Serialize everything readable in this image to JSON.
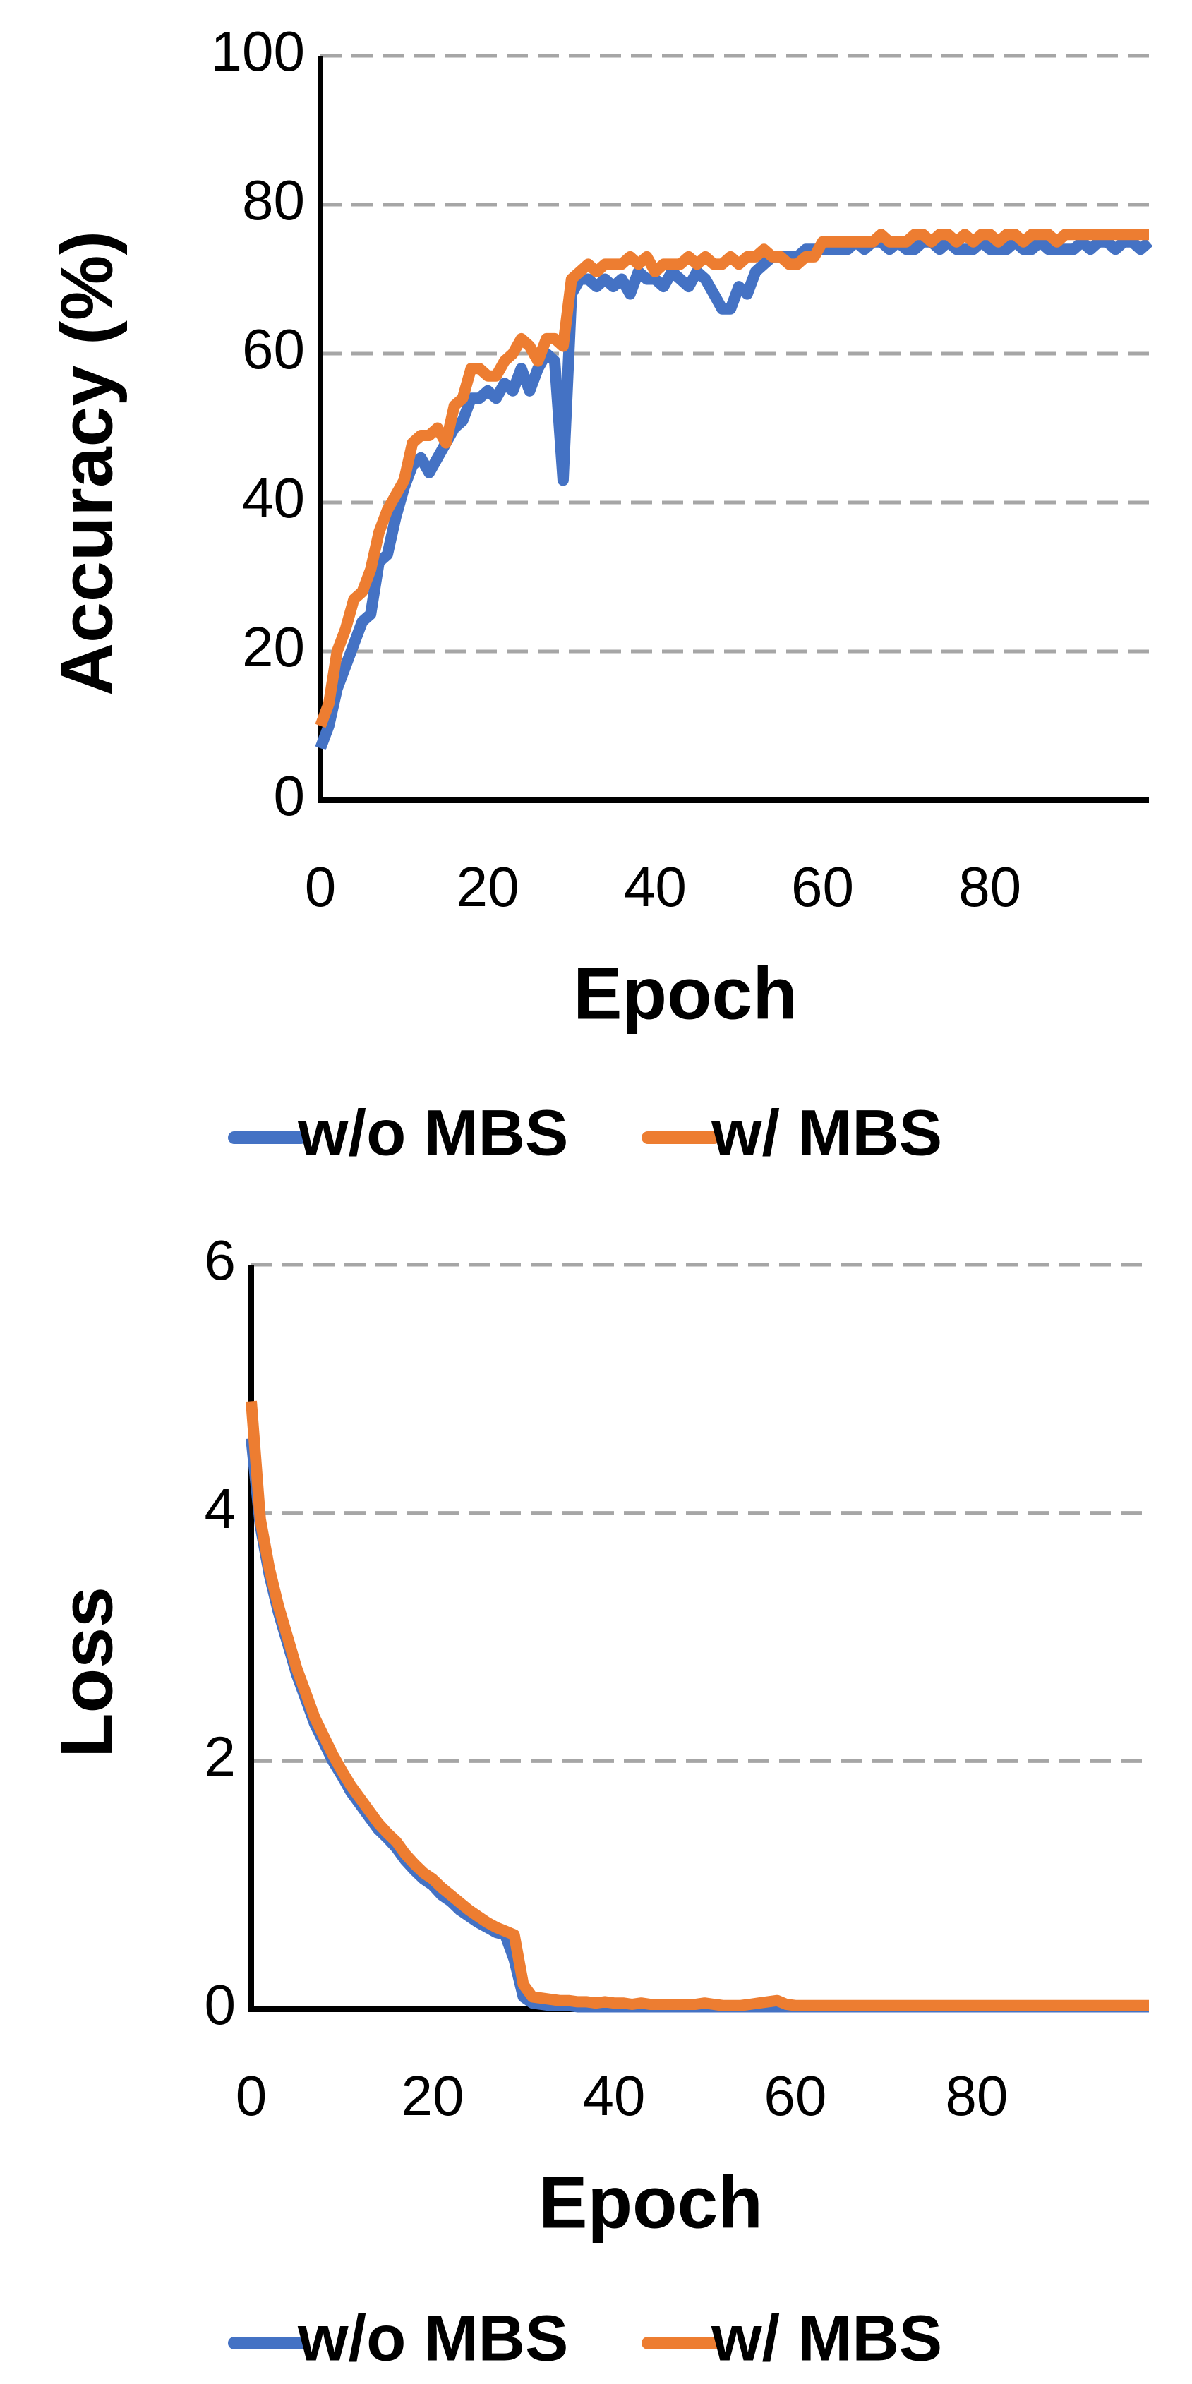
{
  "chart_data": [
    {
      "type": "line",
      "y_label": "Accuracy (%)",
      "x_label": "Epoch",
      "legend": "bottom",
      "grid": true,
      "x": [
        0,
        1,
        2,
        3,
        4,
        5,
        6,
        7,
        8,
        9,
        10,
        11,
        12,
        13,
        14,
        15,
        16,
        17,
        18,
        19,
        20,
        21,
        22,
        23,
        24,
        25,
        26,
        27,
        28,
        29,
        30,
        31,
        32,
        33,
        34,
        35,
        36,
        37,
        38,
        39,
        40,
        41,
        42,
        43,
        44,
        45,
        46,
        47,
        48,
        49,
        50,
        51,
        52,
        53,
        54,
        55,
        56,
        57,
        58,
        59,
        60,
        61,
        62,
        63,
        64,
        65,
        66,
        67,
        68,
        69,
        70,
        71,
        72,
        73,
        74,
        75,
        76,
        77,
        78,
        79,
        80,
        81,
        82,
        83,
        84,
        85,
        86,
        87,
        88,
        89,
        90,
        91,
        92,
        93,
        94,
        95,
        96,
        97,
        98,
        99
      ],
      "xlim": [
        0,
        99
      ],
      "xticks": [
        0,
        20,
        40,
        60,
        80
      ],
      "ylim": [
        0,
        100
      ],
      "yticks": [
        0,
        20,
        40,
        60,
        80,
        100
      ],
      "series": [
        {
          "name": "w/o MBS",
          "color": "#4472c4",
          "values": [
            7,
            10,
            15,
            18,
            21,
            24,
            25,
            32,
            33,
            38,
            42,
            45,
            46,
            44,
            46,
            48,
            50,
            51,
            54,
            54,
            55,
            54,
            56,
            55,
            58,
            55,
            58,
            60,
            59,
            43,
            68,
            70,
            70,
            69,
            70,
            69,
            70,
            68,
            71,
            70,
            70,
            69,
            71,
            70,
            69,
            71,
            70,
            68,
            66,
            66,
            69,
            68,
            71,
            72,
            73,
            73,
            73,
            73,
            74,
            74,
            74,
            74,
            74,
            74,
            75,
            74,
            75,
            75,
            74,
            75,
            74,
            74,
            75,
            75,
            74,
            75,
            74,
            74,
            74,
            75,
            74,
            74,
            74,
            75,
            74,
            74,
            75,
            74,
            74,
            74,
            74,
            75,
            74,
            75,
            75,
            74,
            75,
            75,
            74,
            75
          ]
        },
        {
          "name": "w/ MBS",
          "color": "#ed7d31",
          "values": [
            10,
            13,
            20,
            23,
            27,
            28,
            31,
            36,
            39,
            41,
            43,
            48,
            49,
            49,
            50,
            48,
            53,
            54,
            58,
            58,
            57,
            57,
            59,
            60,
            62,
            61,
            59,
            62,
            62,
            61,
            70,
            71,
            72,
            71,
            72,
            72,
            72,
            73,
            72,
            73,
            71,
            72,
            72,
            72,
            73,
            72,
            73,
            72,
            72,
            73,
            72,
            73,
            73,
            74,
            73,
            73,
            72,
            72,
            73,
            73,
            75,
            75,
            75,
            75,
            75,
            75,
            75,
            76,
            75,
            75,
            75,
            76,
            76,
            75,
            76,
            76,
            75,
            76,
            75,
            76,
            76,
            75,
            76,
            76,
            75,
            76,
            76,
            76,
            75,
            76,
            76,
            76,
            76,
            76,
            76,
            76,
            76,
            76,
            76,
            76
          ]
        }
      ]
    },
    {
      "type": "line",
      "y_label": "Loss",
      "x_label": "Epoch",
      "legend": "bottom",
      "grid": true,
      "x": [
        0,
        1,
        2,
        3,
        4,
        5,
        6,
        7,
        8,
        9,
        10,
        11,
        12,
        13,
        14,
        15,
        16,
        17,
        18,
        19,
        20,
        21,
        22,
        23,
        24,
        25,
        26,
        27,
        28,
        29,
        30,
        31,
        32,
        33,
        34,
        35,
        36,
        37,
        38,
        39,
        40,
        41,
        42,
        43,
        44,
        45,
        46,
        47,
        48,
        49,
        50,
        51,
        52,
        53,
        54,
        55,
        56,
        57,
        58,
        59,
        60,
        61,
        62,
        63,
        64,
        65,
        66,
        67,
        68,
        69,
        70,
        71,
        72,
        73,
        74,
        75,
        76,
        77,
        78,
        79,
        80,
        81,
        82,
        83,
        84,
        85,
        86,
        87,
        88,
        89,
        90,
        91,
        92,
        93,
        94,
        95,
        96,
        97,
        98,
        99
      ],
      "xlim": [
        0,
        99
      ],
      "xticks": [
        0,
        20,
        40,
        60,
        80
      ],
      "ylim": [
        0,
        6
      ],
      "yticks": [
        0,
        2,
        4,
        6
      ],
      "series": [
        {
          "name": "w/o MBS",
          "color": "#4472c4",
          "values": [
            4.6,
            3.9,
            3.5,
            3.2,
            2.95,
            2.7,
            2.5,
            2.3,
            2.15,
            2.0,
            1.88,
            1.75,
            1.65,
            1.55,
            1.45,
            1.38,
            1.3,
            1.2,
            1.12,
            1.05,
            1.0,
            0.92,
            0.87,
            0.8,
            0.75,
            0.7,
            0.66,
            0.62,
            0.6,
            0.4,
            0.1,
            0.05,
            0.04,
            0.03,
            0.03,
            0.03,
            0.02,
            0.02,
            0.02,
            0.02,
            0.02,
            0.02,
            0.02,
            0.02,
            0.02,
            0.02,
            0.02,
            0.02,
            0.02,
            0.02,
            0.02,
            0.02,
            0.02,
            0.02,
            0.02,
            0.02,
            0.02,
            0.02,
            0.02,
            0.02,
            0.02,
            0.02,
            0.02,
            0.02,
            0.02,
            0.02,
            0.02,
            0.02,
            0.02,
            0.02,
            0.02,
            0.02,
            0.02,
            0.02,
            0.02,
            0.02,
            0.02,
            0.02,
            0.02,
            0.02,
            0.02,
            0.02,
            0.02,
            0.02,
            0.02,
            0.02,
            0.02,
            0.02,
            0.02,
            0.02,
            0.02,
            0.02,
            0.02,
            0.02,
            0.02,
            0.02,
            0.02,
            0.02,
            0.02,
            0.02
          ]
        },
        {
          "name": "w/ MBS",
          "color": "#ed7d31",
          "values": [
            4.9,
            3.95,
            3.55,
            3.25,
            3.0,
            2.75,
            2.55,
            2.35,
            2.2,
            2.05,
            1.92,
            1.8,
            1.7,
            1.6,
            1.5,
            1.42,
            1.35,
            1.25,
            1.17,
            1.1,
            1.05,
            0.98,
            0.92,
            0.86,
            0.8,
            0.75,
            0.7,
            0.66,
            0.63,
            0.6,
            0.2,
            0.1,
            0.09,
            0.08,
            0.07,
            0.07,
            0.06,
            0.06,
            0.05,
            0.06,
            0.05,
            0.05,
            0.04,
            0.05,
            0.04,
            0.04,
            0.04,
            0.04,
            0.04,
            0.04,
            0.05,
            0.04,
            0.03,
            0.03,
            0.03,
            0.04,
            0.05,
            0.06,
            0.07,
            0.04,
            0.03,
            0.03,
            0.03,
            0.03,
            0.03,
            0.03,
            0.03,
            0.03,
            0.03,
            0.03,
            0.03,
            0.03,
            0.03,
            0.03,
            0.03,
            0.03,
            0.03,
            0.03,
            0.03,
            0.03,
            0.03,
            0.03,
            0.03,
            0.03,
            0.03,
            0.03,
            0.03,
            0.03,
            0.03,
            0.03,
            0.03,
            0.03,
            0.03,
            0.03,
            0.03,
            0.03,
            0.03,
            0.03,
            0.03,
            0.03
          ]
        }
      ]
    }
  ]
}
